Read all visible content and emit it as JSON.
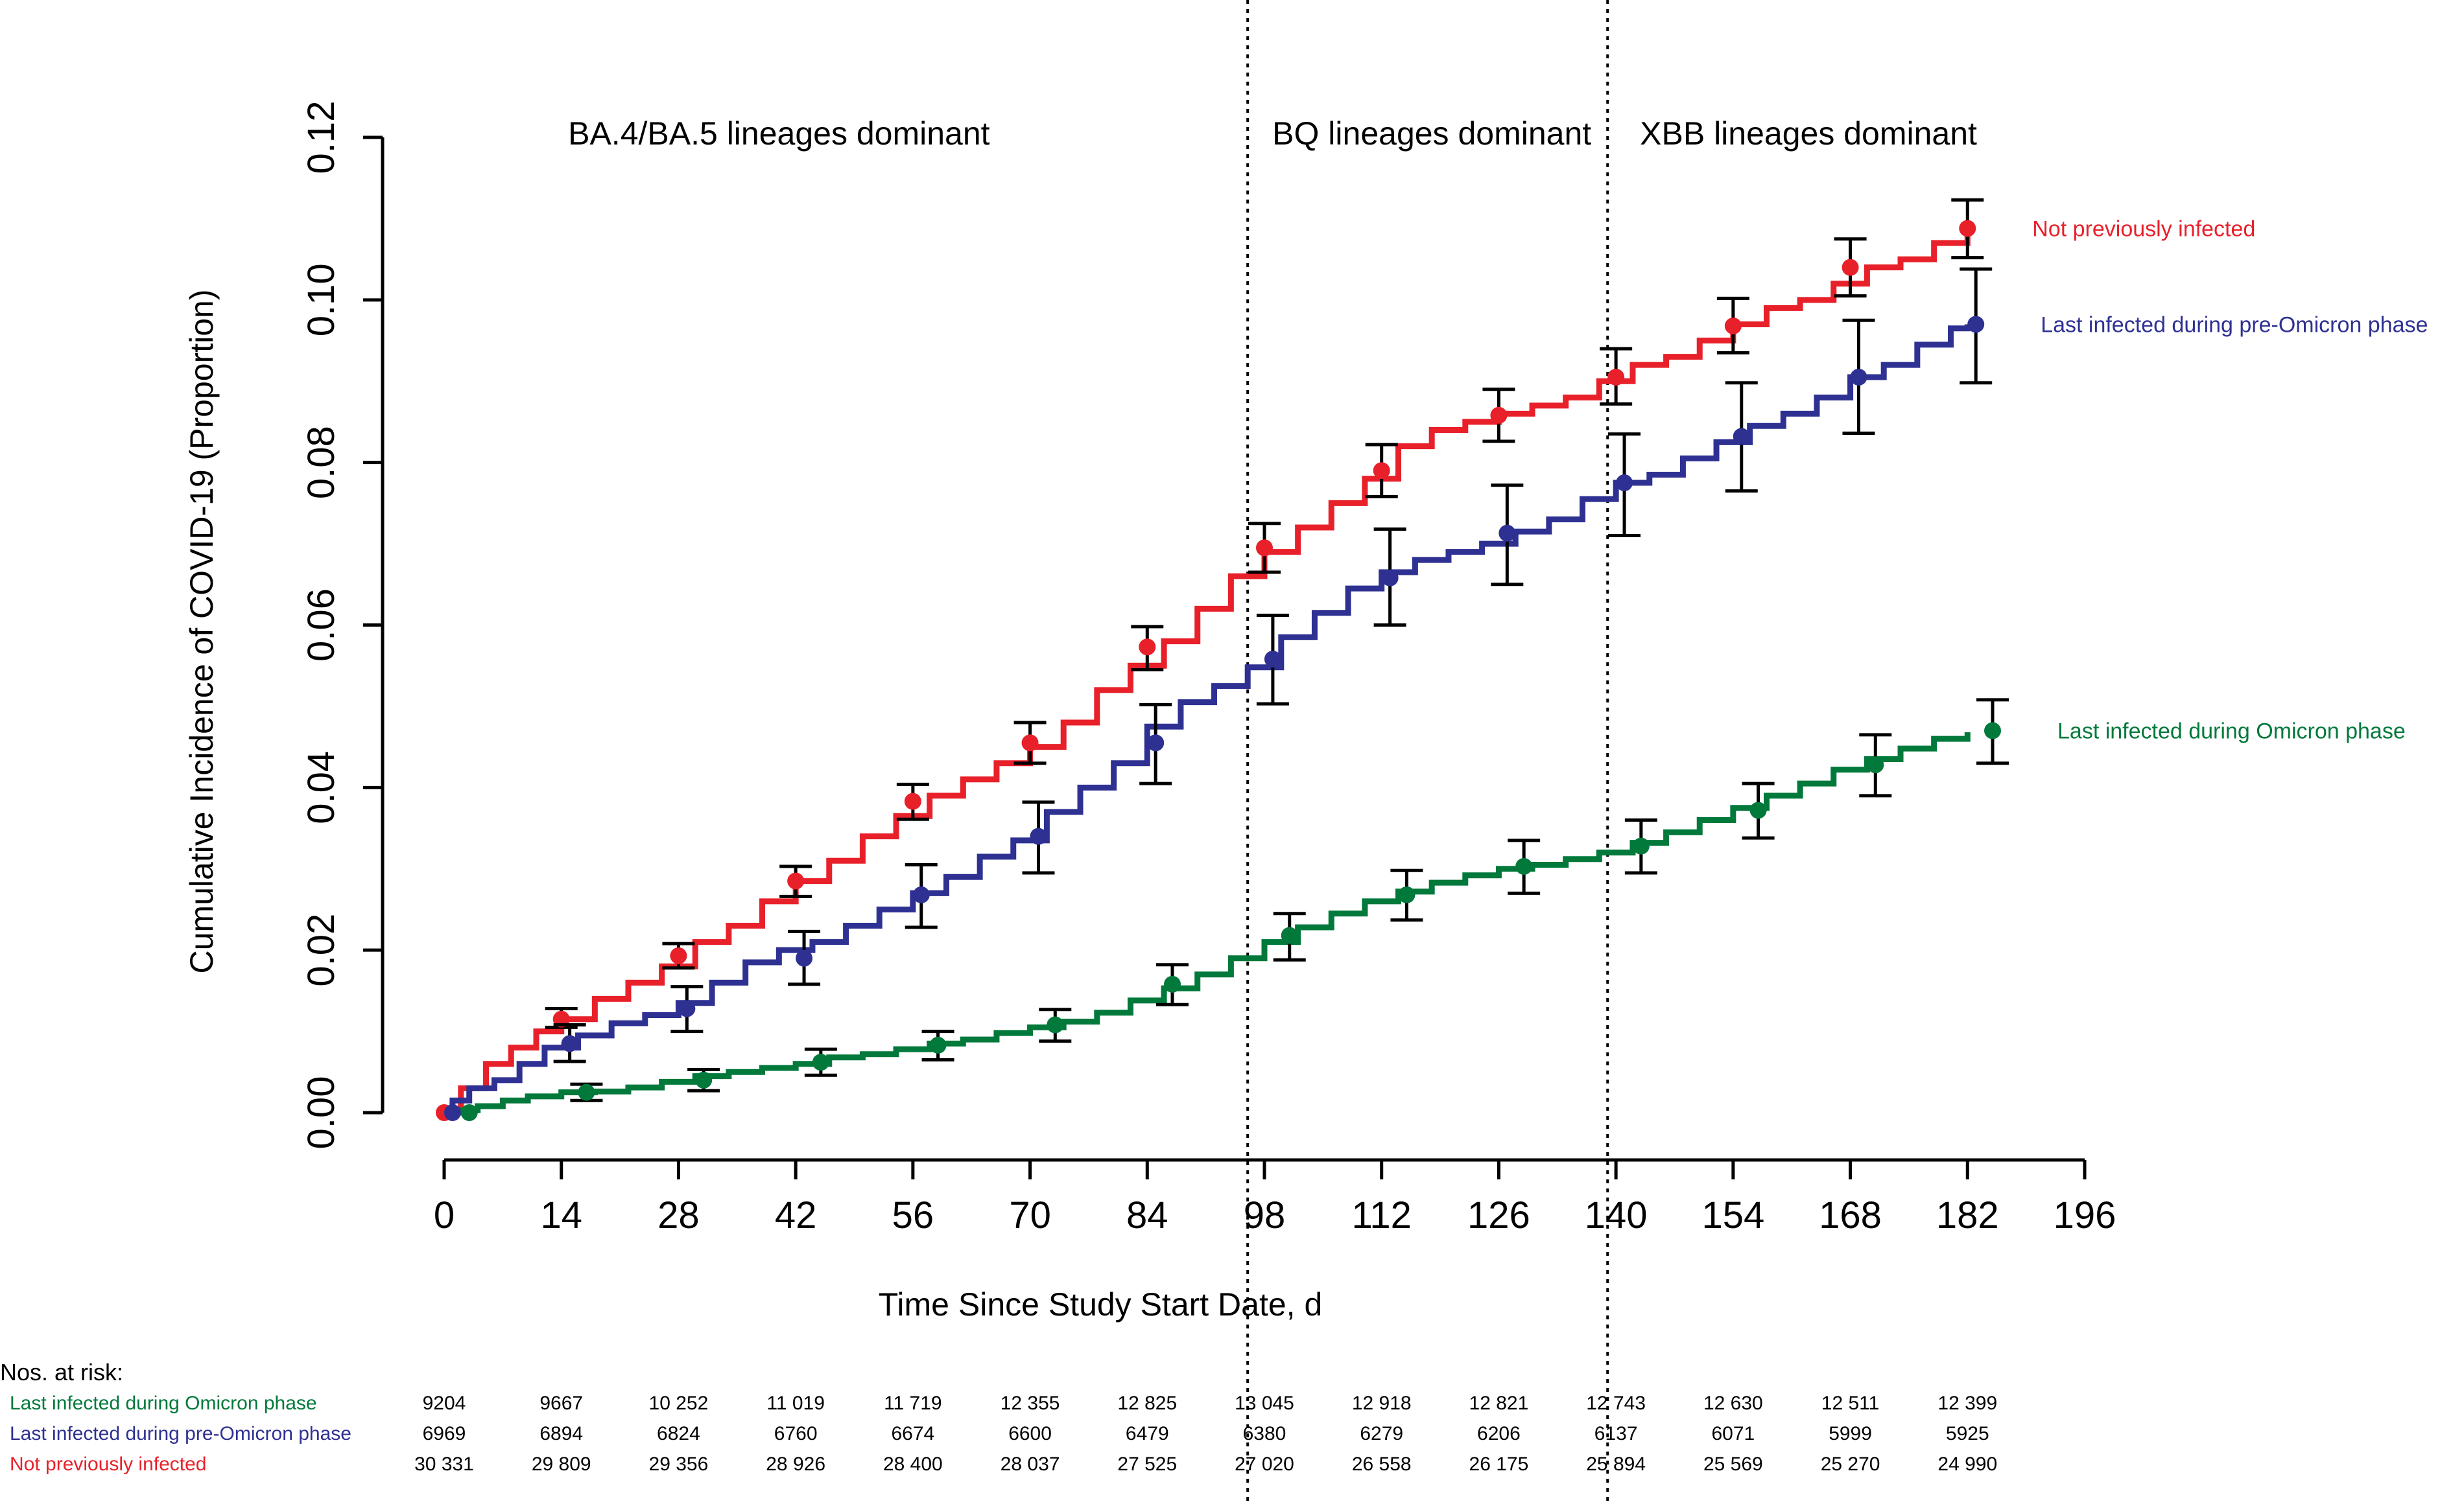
{
  "chart_data": {
    "type": "line",
    "title": "",
    "xlabel": "Time Since Study Start Date, d",
    "ylabel": "Cumulative Incidence of COVID-19 (Proportion)",
    "xlim": [
      0,
      196
    ],
    "ylim": [
      0,
      0.12
    ],
    "x_ticks": [
      "0",
      "14",
      "28",
      "42",
      "56",
      "70",
      "84",
      "98",
      "112",
      "126",
      "140",
      "154",
      "168",
      "182",
      "196"
    ],
    "y_ticks": [
      "0.00",
      "0.02",
      "0.04",
      "0.06",
      "0.08",
      "0.10",
      "0.12"
    ],
    "grid": false,
    "legend": "direct labels at right end of each curve",
    "period_dividers": [
      96,
      139
    ],
    "periods": [
      {
        "label": "BA.4/BA.5 lineages dominant",
        "x_center": 40
      },
      {
        "label": "BQ lineages dominant",
        "x_center": 118
      },
      {
        "label": "XBB lineages dominant",
        "x_center": 163
      }
    ],
    "series": [
      {
        "name": "Not previously infected",
        "color": "#e8202a",
        "curve": [
          [
            0,
            0
          ],
          [
            2,
            0.003
          ],
          [
            5,
            0.006
          ],
          [
            8,
            0.008
          ],
          [
            11,
            0.01
          ],
          [
            14,
            0.0115
          ],
          [
            18,
            0.014
          ],
          [
            22,
            0.016
          ],
          [
            26,
            0.018
          ],
          [
            30,
            0.021
          ],
          [
            34,
            0.023
          ],
          [
            38,
            0.026
          ],
          [
            42,
            0.0285
          ],
          [
            46,
            0.031
          ],
          [
            50,
            0.034
          ],
          [
            54,
            0.0365
          ],
          [
            58,
            0.039
          ],
          [
            62,
            0.041
          ],
          [
            66,
            0.043
          ],
          [
            70,
            0.045
          ],
          [
            74,
            0.048
          ],
          [
            78,
            0.052
          ],
          [
            82,
            0.055
          ],
          [
            86,
            0.058
          ],
          [
            90,
            0.062
          ],
          [
            94,
            0.066
          ],
          [
            98,
            0.069
          ],
          [
            102,
            0.072
          ],
          [
            106,
            0.075
          ],
          [
            110,
            0.078
          ],
          [
            114,
            0.082
          ],
          [
            118,
            0.084
          ],
          [
            122,
            0.085
          ],
          [
            126,
            0.086
          ],
          [
            130,
            0.087
          ],
          [
            134,
            0.088
          ],
          [
            138,
            0.09
          ],
          [
            142,
            0.092
          ],
          [
            146,
            0.093
          ],
          [
            150,
            0.095
          ],
          [
            154,
            0.097
          ],
          [
            158,
            0.099
          ],
          [
            162,
            0.1
          ],
          [
            166,
            0.102
          ],
          [
            170,
            0.104
          ],
          [
            174,
            0.105
          ],
          [
            178,
            0.107
          ],
          [
            182,
            0.109
          ]
        ],
        "points": [
          {
            "x": 0,
            "y": 0.0,
            "lo": 0.0,
            "hi": 0.0
          },
          {
            "x": 14,
            "y": 0.0115,
            "lo": 0.0105,
            "hi": 0.0128
          },
          {
            "x": 28,
            "y": 0.0193,
            "lo": 0.0178,
            "hi": 0.0208
          },
          {
            "x": 42,
            "y": 0.0285,
            "lo": 0.0266,
            "hi": 0.0303
          },
          {
            "x": 56,
            "y": 0.0383,
            "lo": 0.0361,
            "hi": 0.0404
          },
          {
            "x": 70,
            "y": 0.0455,
            "lo": 0.043,
            "hi": 0.048
          },
          {
            "x": 84,
            "y": 0.0573,
            "lo": 0.0545,
            "hi": 0.0598
          },
          {
            "x": 98,
            "y": 0.0695,
            "lo": 0.0665,
            "hi": 0.0725
          },
          {
            "x": 112,
            "y": 0.079,
            "lo": 0.0758,
            "hi": 0.0822
          },
          {
            "x": 126,
            "y": 0.0858,
            "lo": 0.0826,
            "hi": 0.089
          },
          {
            "x": 140,
            "y": 0.0905,
            "lo": 0.0872,
            "hi": 0.094
          },
          {
            "x": 154,
            "y": 0.0968,
            "lo": 0.0935,
            "hi": 0.1002
          },
          {
            "x": 168,
            "y": 0.104,
            "lo": 0.1005,
            "hi": 0.1075
          },
          {
            "x": 182,
            "y": 0.1088,
            "lo": 0.1052,
            "hi": 0.1123
          }
        ]
      },
      {
        "name": "Last infected during pre-Omicron phase",
        "color": "#2e3192",
        "curve": [
          [
            0,
            0
          ],
          [
            1,
            0.0015
          ],
          [
            3,
            0.003
          ],
          [
            6,
            0.004
          ],
          [
            9,
            0.006
          ],
          [
            12,
            0.008
          ],
          [
            16,
            0.0095
          ],
          [
            20,
            0.011
          ],
          [
            24,
            0.012
          ],
          [
            28,
            0.0135
          ],
          [
            32,
            0.016
          ],
          [
            36,
            0.0185
          ],
          [
            40,
            0.02
          ],
          [
            44,
            0.021
          ],
          [
            48,
            0.023
          ],
          [
            52,
            0.025
          ],
          [
            56,
            0.027
          ],
          [
            60,
            0.029
          ],
          [
            64,
            0.0315
          ],
          [
            68,
            0.0335
          ],
          [
            72,
            0.037
          ],
          [
            76,
            0.04
          ],
          [
            80,
            0.043
          ],
          [
            84,
            0.0475
          ],
          [
            88,
            0.0505
          ],
          [
            92,
            0.0525
          ],
          [
            96,
            0.0548
          ],
          [
            100,
            0.0585
          ],
          [
            104,
            0.0615
          ],
          [
            108,
            0.0645
          ],
          [
            112,
            0.0665
          ],
          [
            116,
            0.068
          ],
          [
            120,
            0.069
          ],
          [
            124,
            0.07
          ],
          [
            128,
            0.0715
          ],
          [
            132,
            0.073
          ],
          [
            136,
            0.0755
          ],
          [
            140,
            0.0775
          ],
          [
            144,
            0.0785
          ],
          [
            148,
            0.0805
          ],
          [
            152,
            0.0825
          ],
          [
            156,
            0.0845
          ],
          [
            160,
            0.086
          ],
          [
            164,
            0.088
          ],
          [
            168,
            0.0905
          ],
          [
            172,
            0.092
          ],
          [
            176,
            0.0945
          ],
          [
            180,
            0.0965
          ],
          [
            182,
            0.097
          ]
        ],
        "points": [
          {
            "x": 1,
            "y": 0.0,
            "lo": 0.0,
            "hi": 0.0
          },
          {
            "x": 15,
            "y": 0.0085,
            "lo": 0.0063,
            "hi": 0.0108
          },
          {
            "x": 29,
            "y": 0.0128,
            "lo": 0.01,
            "hi": 0.0155
          },
          {
            "x": 43,
            "y": 0.019,
            "lo": 0.0158,
            "hi": 0.0223
          },
          {
            "x": 57,
            "y": 0.0268,
            "lo": 0.0228,
            "hi": 0.0305
          },
          {
            "x": 71,
            "y": 0.034,
            "lo": 0.0295,
            "hi": 0.0382
          },
          {
            "x": 85,
            "y": 0.0455,
            "lo": 0.0405,
            "hi": 0.0502
          },
          {
            "x": 99,
            "y": 0.0558,
            "lo": 0.0503,
            "hi": 0.0612
          },
          {
            "x": 113,
            "y": 0.0658,
            "lo": 0.06,
            "hi": 0.0718
          },
          {
            "x": 127,
            "y": 0.0713,
            "lo": 0.065,
            "hi": 0.0772
          },
          {
            "x": 141,
            "y": 0.0775,
            "lo": 0.071,
            "hi": 0.0835
          },
          {
            "x": 155,
            "y": 0.0832,
            "lo": 0.0765,
            "hi": 0.0898
          },
          {
            "x": 169,
            "y": 0.0905,
            "lo": 0.0836,
            "hi": 0.0975
          },
          {
            "x": 183,
            "y": 0.097,
            "lo": 0.0898,
            "hi": 0.1038
          }
        ]
      },
      {
        "name": "Last infected during Omicron phase",
        "color": "#00793b",
        "curve": [
          [
            0,
            0
          ],
          [
            2,
            0.0003
          ],
          [
            4,
            0.0008
          ],
          [
            7,
            0.0015
          ],
          [
            10,
            0.002
          ],
          [
            14,
            0.0025
          ],
          [
            18,
            0.0026
          ],
          [
            22,
            0.0031
          ],
          [
            26,
            0.0038
          ],
          [
            30,
            0.0045
          ],
          [
            34,
            0.005
          ],
          [
            38,
            0.0055
          ],
          [
            42,
            0.006
          ],
          [
            46,
            0.0068
          ],
          [
            50,
            0.0072
          ],
          [
            54,
            0.0078
          ],
          [
            58,
            0.0085
          ],
          [
            62,
            0.009
          ],
          [
            66,
            0.0098
          ],
          [
            70,
            0.0105
          ],
          [
            74,
            0.0112
          ],
          [
            78,
            0.0123
          ],
          [
            82,
            0.0138
          ],
          [
            86,
            0.0153
          ],
          [
            90,
            0.017
          ],
          [
            94,
            0.019
          ],
          [
            98,
            0.021
          ],
          [
            102,
            0.0228
          ],
          [
            106,
            0.0245
          ],
          [
            110,
            0.026
          ],
          [
            114,
            0.0272
          ],
          [
            118,
            0.0283
          ],
          [
            122,
            0.0292
          ],
          [
            126,
            0.03
          ],
          [
            130,
            0.0305
          ],
          [
            134,
            0.0312
          ],
          [
            138,
            0.032
          ],
          [
            142,
            0.0332
          ],
          [
            146,
            0.0345
          ],
          [
            150,
            0.036
          ],
          [
            154,
            0.0375
          ],
          [
            158,
            0.039
          ],
          [
            162,
            0.0405
          ],
          [
            166,
            0.0422
          ],
          [
            170,
            0.0435
          ],
          [
            174,
            0.0448
          ],
          [
            178,
            0.046
          ],
          [
            182,
            0.0468
          ]
        ],
        "points": [
          {
            "x": 3,
            "y": 0.0,
            "lo": 0.0,
            "hi": 0.0
          },
          {
            "x": 17,
            "y": 0.0025,
            "lo": 0.0015,
            "hi": 0.0035
          },
          {
            "x": 31,
            "y": 0.004,
            "lo": 0.0027,
            "hi": 0.0053
          },
          {
            "x": 45,
            "y": 0.0062,
            "lo": 0.0046,
            "hi": 0.0078
          },
          {
            "x": 59,
            "y": 0.0083,
            "lo": 0.0065,
            "hi": 0.01
          },
          {
            "x": 73,
            "y": 0.0108,
            "lo": 0.0088,
            "hi": 0.0127
          },
          {
            "x": 87,
            "y": 0.0158,
            "lo": 0.0133,
            "hi": 0.0182
          },
          {
            "x": 101,
            "y": 0.0218,
            "lo": 0.0188,
            "hi": 0.0245
          },
          {
            "x": 115,
            "y": 0.0268,
            "lo": 0.0237,
            "hi": 0.0298
          },
          {
            "x": 129,
            "y": 0.0303,
            "lo": 0.027,
            "hi": 0.0335
          },
          {
            "x": 143,
            "y": 0.0328,
            "lo": 0.0295,
            "hi": 0.036
          },
          {
            "x": 157,
            "y": 0.0372,
            "lo": 0.0338,
            "hi": 0.0405
          },
          {
            "x": 171,
            "y": 0.0428,
            "lo": 0.039,
            "hi": 0.0465
          },
          {
            "x": 185,
            "y": 0.047,
            "lo": 0.043,
            "hi": 0.0508
          }
        ]
      }
    ],
    "at_risk": {
      "heading": "Nos. at risk:",
      "rows": [
        {
          "label": "Last infected during Omicron phase",
          "color": "#00793b",
          "values": [
            "9204",
            "9667",
            "10 252",
            "11 019",
            "11 719",
            "12 355",
            "12 825",
            "13 045",
            "12 918",
            "12 821",
            "12 743",
            "12 630",
            "12 511",
            "12 399"
          ]
        },
        {
          "label": "Last infected during pre-Omicron phase",
          "color": "#2e3192",
          "values": [
            "6969",
            "6894",
            "6824",
            "6760",
            "6674",
            "6600",
            "6479",
            "6380",
            "6279",
            "6206",
            "6137",
            "6071",
            "5999",
            "5925"
          ]
        },
        {
          "label": "Not previously infected",
          "color": "#e8202a",
          "values": [
            "30 331",
            "29 809",
            "29 356",
            "28 926",
            "28 400",
            "28 037",
            "27 525",
            "27 020",
            "26 558",
            "26 175",
            "25 894",
            "25 569",
            "25 270",
            "24 990"
          ]
        }
      ]
    }
  }
}
